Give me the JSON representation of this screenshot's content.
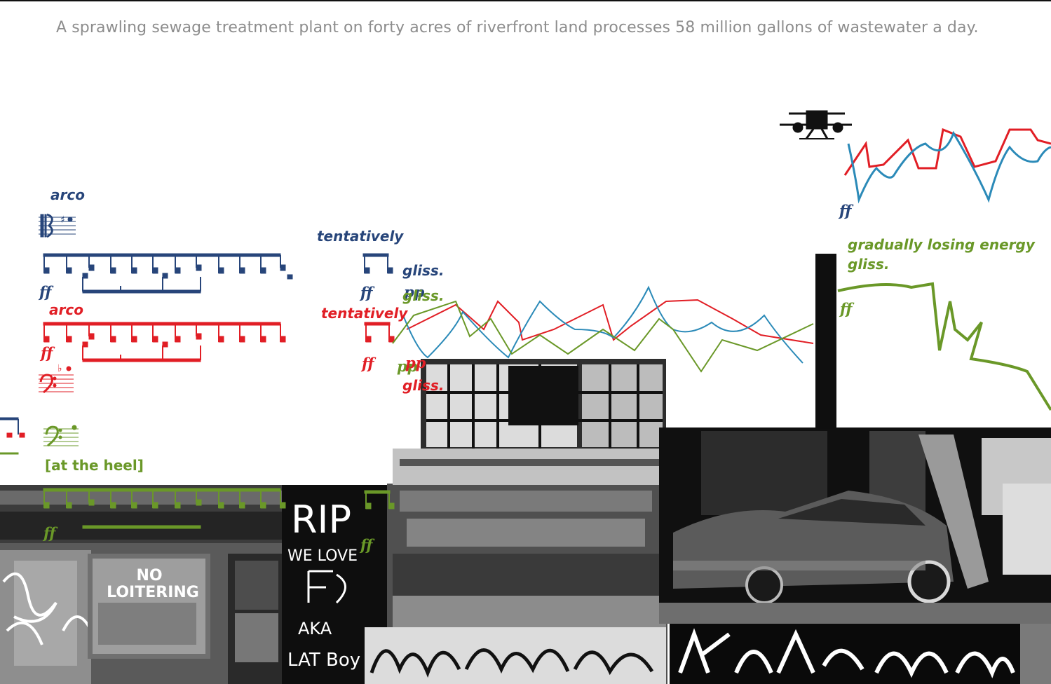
{
  "caption": "A sprawling sewage treatment plant on forty acres of riverfront land processes 58 million gallons of wastewater a day.",
  "score": {
    "viola_part": {
      "instruction": "arco",
      "dynamic": "ff",
      "color": "#27457a",
      "tentatively": "tentatively",
      "gliss": "gliss.",
      "dynamic_2": "ff",
      "pp": "pp"
    },
    "cello_part": {
      "instruction": "arco",
      "dynamic": "ff",
      "color": "#e11e25",
      "tentatively": "tentatively",
      "dynamic_2": "ff",
      "pp": "pp",
      "gliss": "gliss."
    },
    "bass_part": {
      "instruction": "[at the heel]",
      "dynamic": "ff",
      "dynamic_2": "ff",
      "color": "#6a9828",
      "gliss": "gliss.",
      "pp": "pp"
    },
    "right_section": {
      "dynamic_top": "ff",
      "energy": "gradually losing energy",
      "gliss": "gliss.",
      "dynamic_green": "ff"
    }
  },
  "photo": {
    "sign_line1": "NO",
    "sign_line2": "LOITERING",
    "graffiti_rip": "RIP",
    "graffiti_1": "WE LOVE",
    "graffiti_2": "AKA",
    "graffiti_3": "LAT Boy",
    "icons": [
      "drone-icon",
      "viola-clef-icon",
      "bass-clef-icon"
    ]
  }
}
